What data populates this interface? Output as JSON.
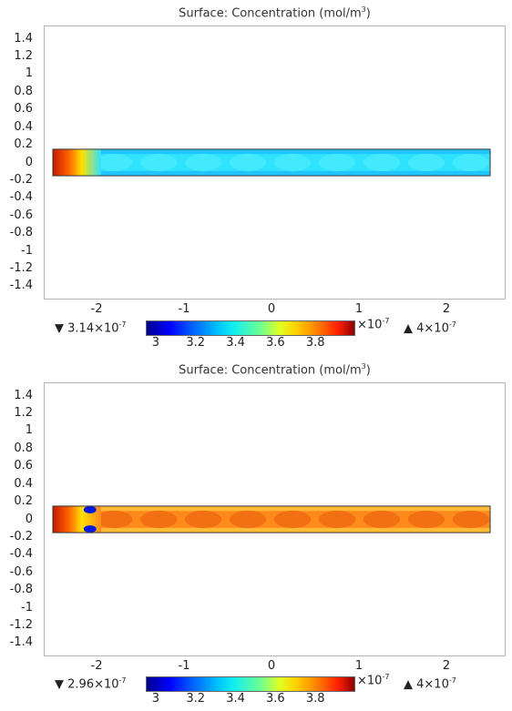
{
  "chart_data": [
    {
      "type": "heatmap",
      "title_prefix": "Surface: Concentration (mol/m",
      "title_sup": "3",
      "title_suffix": ")",
      "x_ticks": [
        "-2",
        "-1",
        "0",
        "1",
        "2"
      ],
      "y_ticks": [
        "1.4",
        "1.2",
        "1",
        "0.8",
        "0.6",
        "0.4",
        "0.2",
        "0",
        "-0.2",
        "-0.4",
        "-0.6",
        "-0.8",
        "-1",
        "-1.2",
        "-1.4"
      ],
      "colorbar_ticks": [
        "3",
        "3.2",
        "3.4",
        "3.6",
        "3.8"
      ],
      "colorbar_scale_base": "×10",
      "colorbar_scale_exp": "-7",
      "min_label": "3.14×10",
      "min_exp": "-7",
      "max_label": "4×10",
      "max_exp": "-7",
      "xlim": [
        -2.6,
        2.6
      ],
      "ylim": [
        -1.55,
        1.55
      ],
      "domain_x": [
        -2.5,
        2.5
      ],
      "domain_y": [
        -0.15,
        0.15
      ],
      "field_levels": {
        "inlet": 3.95,
        "bulk": 3.35,
        "edge": 3.25
      }
    },
    {
      "type": "heatmap",
      "title_prefix": "Surface: Concentration (mol/m",
      "title_sup": "3",
      "title_suffix": ")",
      "x_ticks": [
        "-2",
        "-1",
        "0",
        "1",
        "2"
      ],
      "y_ticks": [
        "1.4",
        "1.2",
        "1",
        "0.8",
        "0.6",
        "0.4",
        "0.2",
        "0",
        "-0.2",
        "-0.4",
        "-0.6",
        "-0.8",
        "-1",
        "-1.2",
        "-1.4"
      ],
      "colorbar_ticks": [
        "3",
        "3.2",
        "3.4",
        "3.6",
        "3.8"
      ],
      "colorbar_scale_base": "×10",
      "colorbar_scale_exp": "-7",
      "min_label": "2.96×10",
      "min_exp": "-7",
      "max_label": "4×10",
      "max_exp": "-7",
      "xlim": [
        -2.6,
        2.6
      ],
      "ylim": [
        -1.55,
        1.55
      ],
      "domain_x": [
        -2.5,
        2.5
      ],
      "domain_y": [
        -0.15,
        0.15
      ],
      "field_levels": {
        "inlet": 3.95,
        "bulk": 3.8,
        "edge": 3.45
      }
    }
  ],
  "colors": {
    "inlet": "#c81800",
    "panel1_bulk": "#2fe3ff",
    "panel1_edge": "#19b8ff",
    "panel1_lobe": "#46eafc",
    "panel2_bulk": "#ff8a1c",
    "panel2_edge": "#ffd040",
    "panel2_lobe": "#f06a10",
    "cool_spot": "#0018e0"
  }
}
